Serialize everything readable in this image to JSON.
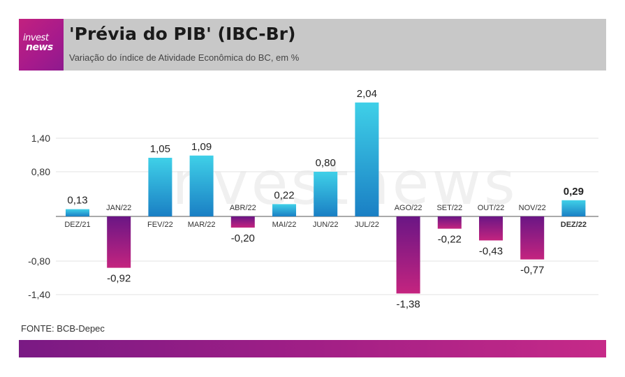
{
  "header": {
    "logo_line1": "invest",
    "logo_line2": "news",
    "title": "'Prévia do PIB' (IBC-Br)",
    "subtitle": "Variação do índice de Atividade Econômica do BC, em %"
  },
  "watermark": "investnews",
  "source": "FONTE: BCB-Depec",
  "colors": {
    "header_bg": "#c8c8c8",
    "brand_magenta": "#c2217f",
    "brand_purple": "#7a1a84",
    "positive_top": "#3fd0e8",
    "positive_bottom": "#1a7fc4",
    "negative_top": "#6a1685",
    "negative_bottom": "#c4247f"
  },
  "chart_data": {
    "type": "bar",
    "categories": [
      "DEZ/21",
      "JAN/22",
      "FEV/22",
      "MAR/22",
      "ABR/22",
      "MAI/22",
      "JUN/22",
      "JUL/22",
      "AGO/22",
      "SET/22",
      "OUT/22",
      "NOV/22",
      "DEZ/22"
    ],
    "values": [
      0.13,
      -0.92,
      1.05,
      1.09,
      -0.2,
      0.22,
      0.8,
      2.04,
      -1.38,
      -0.22,
      -0.43,
      -0.77,
      0.29
    ],
    "value_labels": [
      "0,13",
      "-0,92",
      "1,05",
      "1,09",
      "-0,20",
      "0,22",
      "0,80",
      "2,04",
      "-1,38",
      "-0,22",
      "-0,43",
      "-0,77",
      "0,29"
    ],
    "highlight_index": 12,
    "yticks": [
      -1.4,
      -0.8,
      0.8,
      1.4
    ],
    "ytick_labels": [
      "-1,40",
      "-0,80",
      "0,80",
      "1,40"
    ],
    "ylim": [
      -1.4,
      2.04
    ],
    "grid": true,
    "title": "'Prévia do PIB' (IBC-Br)",
    "xlabel": "",
    "ylabel": ""
  }
}
